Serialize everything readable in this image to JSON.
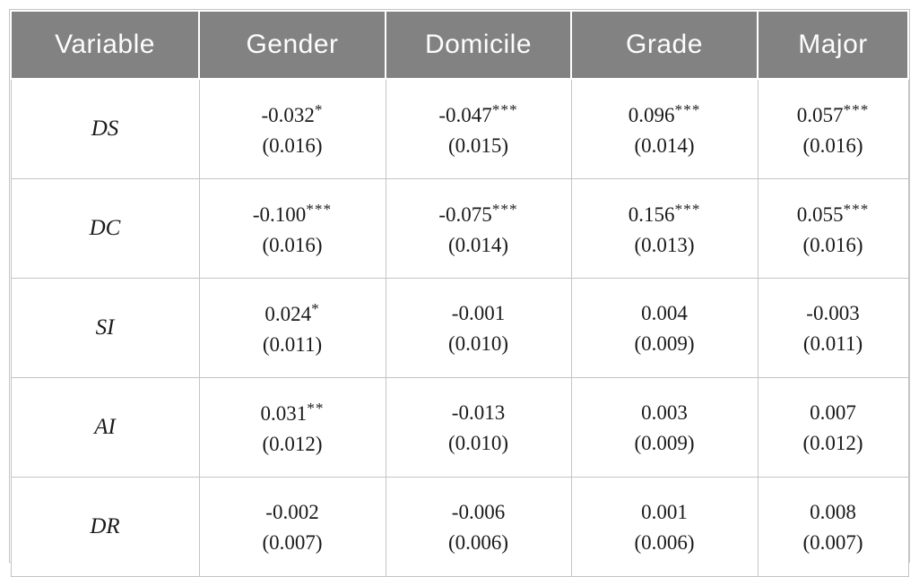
{
  "table": {
    "columns": [
      "Variable",
      "Gender",
      "Domicile",
      "Grade",
      "Major"
    ],
    "rows": [
      {
        "variable": "DS",
        "cells": [
          {
            "estimate": "-0.032",
            "stars": "*",
            "se": "(0.016)"
          },
          {
            "estimate": "-0.047",
            "stars": "***",
            "se": "(0.015)"
          },
          {
            "estimate": "0.096",
            "stars": "***",
            "se": "(0.014)"
          },
          {
            "estimate": "0.057",
            "stars": "***",
            "se": "(0.016)"
          }
        ]
      },
      {
        "variable": "DC",
        "cells": [
          {
            "estimate": "-0.100",
            "stars": "***",
            "se": "(0.016)"
          },
          {
            "estimate": "-0.075",
            "stars": "***",
            "se": "(0.014)"
          },
          {
            "estimate": "0.156",
            "stars": "***",
            "se": "(0.013)"
          },
          {
            "estimate": "0.055",
            "stars": "***",
            "se": "(0.016)"
          }
        ]
      },
      {
        "variable": "SI",
        "cells": [
          {
            "estimate": "0.024",
            "stars": "*",
            "se": "(0.011)"
          },
          {
            "estimate": "-0.001",
            "stars": "",
            "se": "(0.010)"
          },
          {
            "estimate": "0.004",
            "stars": "",
            "se": "(0.009)"
          },
          {
            "estimate": "-0.003",
            "stars": "",
            "se": "(0.011)"
          }
        ]
      },
      {
        "variable": "AI",
        "cells": [
          {
            "estimate": "0.031",
            "stars": "**",
            "se": "(0.012)"
          },
          {
            "estimate": "-0.013",
            "stars": "",
            "se": "(0.010)"
          },
          {
            "estimate": "0.003",
            "stars": "",
            "se": "(0.009)"
          },
          {
            "estimate": "0.007",
            "stars": "",
            "se": "(0.012)"
          }
        ]
      },
      {
        "variable": "DR",
        "cells": [
          {
            "estimate": "-0.002",
            "stars": "",
            "se": "(0.007)"
          },
          {
            "estimate": "-0.006",
            "stars": "",
            "se": "(0.006)"
          },
          {
            "estimate": "0.001",
            "stars": "",
            "se": "(0.006)"
          },
          {
            "estimate": "0.008",
            "stars": "",
            "se": "(0.007)"
          }
        ]
      }
    ]
  },
  "colors": {
    "header_bg": "#828282",
    "header_text": "#fdfdfd",
    "body_text": "#1a1a1a",
    "border": "#c4c4c4"
  }
}
